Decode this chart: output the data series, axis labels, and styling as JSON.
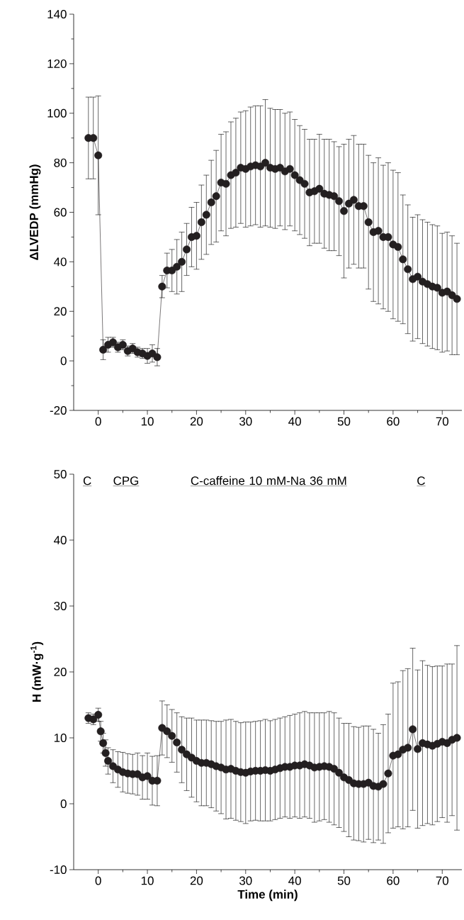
{
  "chart_data": [
    {
      "type": "line",
      "ylabel": "ΔLVEDP (mmHg)",
      "marker": "circle",
      "xlim": [
        -5,
        74
      ],
      "ylim": [
        -20,
        140
      ],
      "xticks": [
        0,
        {
          "value": 5,
          "label": null
        },
        10,
        {
          "value": 15,
          "label": null
        },
        20,
        {
          "value": 25,
          "label": null
        },
        30,
        {
          "value": 35,
          "label": null
        },
        40,
        {
          "value": 45,
          "label": null
        },
        50,
        {
          "value": 55,
          "label": null
        },
        60,
        {
          "value": 65,
          "label": null
        },
        70
      ],
      "yticks": [
        -20,
        {
          "value": -10,
          "label": null
        },
        0,
        {
          "value": 10,
          "label": null
        },
        20,
        {
          "value": 30,
          "label": null
        },
        40,
        {
          "value": 50,
          "label": null
        },
        60,
        {
          "value": 70,
          "label": null
        },
        80,
        {
          "value": 90,
          "label": null
        },
        100,
        {
          "value": 110,
          "label": null
        },
        120,
        {
          "value": 130,
          "label": null
        },
        140
      ],
      "x": [
        -2,
        -1,
        0,
        1,
        2,
        3,
        4,
        5,
        6,
        7,
        8,
        9,
        10,
        11,
        12,
        13,
        14,
        15,
        16,
        17,
        18,
        19,
        20,
        21,
        22,
        23,
        24,
        25,
        26,
        27,
        28,
        29,
        30,
        31,
        32,
        33,
        34,
        35,
        36,
        37,
        38,
        39,
        40,
        41,
        42,
        43,
        44,
        45,
        46,
        47,
        48,
        49,
        50,
        51,
        52,
        53,
        54,
        55,
        56,
        57,
        58,
        59,
        60,
        61,
        62,
        63,
        64,
        65,
        66,
        67,
        68,
        69,
        70,
        71,
        72,
        73
      ],
      "series": [
        {
          "color": "#231f20",
          "values": [
            90,
            90,
            83,
            4.5,
            6.5,
            7.5,
            5.5,
            6.5,
            4,
            5,
            3.5,
            3,
            2,
            3,
            1.5,
            30,
            36.5,
            36.5,
            38,
            40,
            45,
            50,
            50.5,
            56,
            59,
            64,
            66.5,
            72,
            71.5,
            75,
            76,
            78,
            77.5,
            78.5,
            79,
            78.5,
            80,
            78,
            77.5,
            78,
            76.5,
            77.5,
            75,
            73,
            71.5,
            68,
            68.5,
            69.5,
            67.5,
            67,
            66.5,
            64.5,
            60.5,
            63.5,
            65,
            62.5,
            62.5,
            56,
            52,
            52.5,
            50,
            50,
            47,
            46,
            41,
            37,
            33,
            34,
            32,
            31,
            30,
            29.5,
            27.5,
            28,
            26.5,
            25
          ],
          "errors": [
            16.5,
            16.5,
            24,
            4,
            3,
            2,
            2,
            2,
            2,
            2,
            2,
            2,
            3,
            3.5,
            3.5,
            4.5,
            7,
            8.5,
            11,
            12,
            10.5,
            12,
            13.5,
            15,
            16,
            17,
            18.5,
            19.5,
            21,
            21.5,
            22,
            22.5,
            23.5,
            24,
            24,
            24.5,
            25.5,
            24,
            24,
            23.5,
            23.5,
            23,
            22.5,
            22,
            22,
            21.5,
            21,
            22,
            22,
            22.5,
            22,
            22,
            27,
            26,
            26,
            25,
            25,
            27,
            28,
            29.5,
            29,
            30,
            30,
            30,
            26,
            26,
            25,
            25,
            25,
            25,
            25,
            25,
            24,
            24,
            24,
            22.5
          ]
        }
      ]
    },
    {
      "type": "line",
      "xlabel": "Time (min)",
      "ylabel": "H (mW·g$^{-1}$)",
      "marker": "circle",
      "xlim": [
        -5,
        74
      ],
      "ylim": [
        -10,
        50
      ],
      "xticks": [
        0,
        {
          "value": 5,
          "label": null
        },
        10,
        {
          "value": 15,
          "label": null
        },
        20,
        {
          "value": 25,
          "label": null
        },
        30,
        {
          "value": 35,
          "label": null
        },
        40,
        {
          "value": 45,
          "label": null
        },
        50,
        {
          "value": 55,
          "label": null
        },
        60,
        {
          "value": 65,
          "label": null
        },
        70
      ],
      "yticks": [
        -10,
        0,
        10,
        20,
        30,
        40,
        50
      ],
      "annotations": [
        "C",
        "CPG",
        "C-caffeine 10 mM-Na 36 mM",
        "C"
      ],
      "x": [
        -2,
        -1,
        0,
        0.5,
        1,
        1.5,
        2,
        3,
        4,
        5,
        6,
        7,
        8,
        9,
        10,
        11,
        12,
        13,
        14,
        15,
        16,
        17,
        18,
        19,
        20,
        21,
        22,
        23,
        24,
        25,
        26,
        27,
        28,
        29,
        30,
        31,
        32,
        33,
        34,
        35,
        36,
        37,
        38,
        39,
        40,
        41,
        42,
        43,
        44,
        45,
        46,
        47,
        48,
        49,
        50,
        51,
        52,
        53,
        54,
        55,
        56,
        57,
        58,
        59,
        60,
        61,
        62,
        63,
        64,
        65,
        66,
        67,
        68,
        69,
        70,
        71,
        72,
        73
      ],
      "series": [
        {
          "color": "#231f20",
          "values": [
            13,
            12.8,
            13.5,
            11,
            9.2,
            7.7,
            6.5,
            5.7,
            5.2,
            4.8,
            4.6,
            4.5,
            4.5,
            4,
            4.2,
            3.5,
            3.5,
            11.5,
            11,
            10.3,
            9.3,
            8.2,
            7.5,
            7,
            6.5,
            6.2,
            6.2,
            6,
            5.7,
            5.5,
            5.2,
            5.3,
            5,
            4.8,
            4.7,
            4.9,
            5,
            5,
            5.1,
            5,
            5.2,
            5.4,
            5.6,
            5.6,
            5.8,
            5.8,
            6,
            5.8,
            5.5,
            5.6,
            5.7,
            5.6,
            5.3,
            4.7,
            4,
            3.6,
            3.1,
            3,
            3,
            3.2,
            2.7,
            2.6,
            3,
            4.6,
            7.3,
            7.5,
            8.2,
            8.5,
            11.3,
            8.3,
            9.2,
            9,
            8.8,
            9.1,
            9.4,
            9.2,
            9.7,
            10
          ],
          "errors": [
            0.8,
            0.8,
            1,
            1.5,
            1.5,
            2,
            2,
            2.5,
            2.7,
            3,
            3,
            3,
            3.2,
            3.3,
            3.5,
            3.7,
            3.8,
            4.1,
            4,
            4,
            4.5,
            5,
            5.5,
            6,
            6.2,
            6.5,
            6.5,
            6.6,
            6.8,
            7,
            7.5,
            7.5,
            7.5,
            7.5,
            7.7,
            7.5,
            7.5,
            7.6,
            7.7,
            7.6,
            7.6,
            7.6,
            7.6,
            7.8,
            7.8,
            8,
            8,
            8,
            8.3,
            8.2,
            8.1,
            8.4,
            8.5,
            8.3,
            8.2,
            8.6,
            8.6,
            8.6,
            8.8,
            8.6,
            8.6,
            8.1,
            9,
            9,
            11,
            11,
            12,
            12,
            12.3,
            12,
            12.5,
            12,
            12,
            11.8,
            11.5,
            12,
            11.5,
            14
          ]
        }
      ]
    }
  ]
}
